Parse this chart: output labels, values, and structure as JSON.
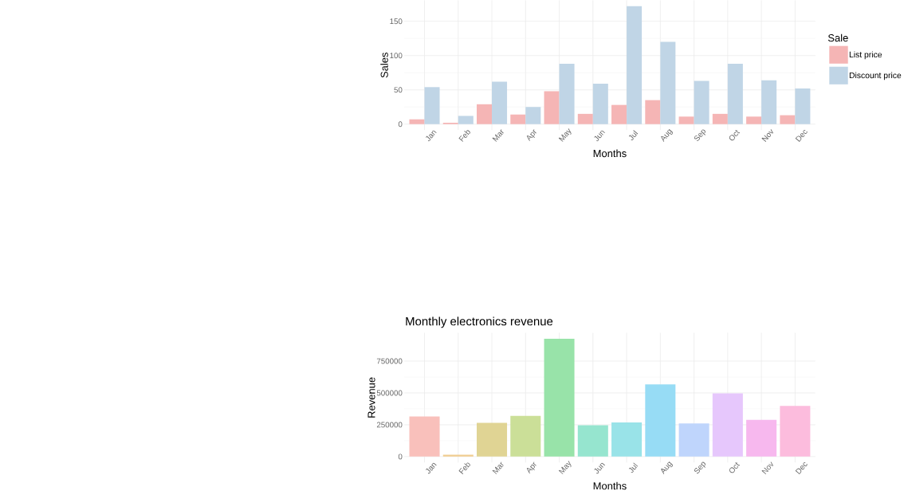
{
  "chart_data": [
    {
      "type": "bar",
      "categories": [
        "Jan",
        "Feb",
        "Mar",
        "Apr",
        "May",
        "Jun",
        "Jul",
        "Aug",
        "Sep",
        "Oct",
        "Nov",
        "Dec"
      ],
      "xlabel": "Months",
      "ylabel": "Sales",
      "legend_title": "Sale",
      "legend": "right",
      "grid": true,
      "ylim": [
        -8.6,
        180.6
      ],
      "yticks": [
        0,
        50,
        100,
        150
      ],
      "series": [
        {
          "name": "List price",
          "color": "#f5b5b5",
          "values": [
            7,
            2,
            29,
            14,
            48,
            15,
            28,
            35,
            11,
            15,
            11,
            13
          ]
        },
        {
          "name": "Discount price",
          "color": "#c0d5e6",
          "values": [
            54,
            12,
            62,
            25,
            88,
            59,
            172,
            120,
            63,
            88,
            64,
            52
          ]
        }
      ]
    },
    {
      "type": "bar",
      "title": "Monthly electronics revenue",
      "categories": [
        "Jan",
        "Feb",
        "Mar",
        "Apr",
        "May",
        "Jun",
        "Jul",
        "Aug",
        "Sep",
        "Oct",
        "Nov",
        "Dec"
      ],
      "xlabel": "Months",
      "ylabel": "Revenue",
      "grid": true,
      "ylim": [
        -46300,
        972300
      ],
      "yticks": [
        0,
        250000,
        500000,
        750000
      ],
      "values": [
        315000,
        14000,
        265000,
        320000,
        926000,
        247000,
        268000,
        567000,
        261000,
        496000,
        288000,
        398000
      ],
      "colors": [
        "#f9c0bb",
        "#f0cc90",
        "#e0d494",
        "#cbdf98",
        "#98e3a9",
        "#96e5cf",
        "#99e3e8",
        "#97dcf5",
        "#bfd5fc",
        "#e6c7fc",
        "#f7b8ee",
        "#fcbcdd"
      ]
    }
  ]
}
